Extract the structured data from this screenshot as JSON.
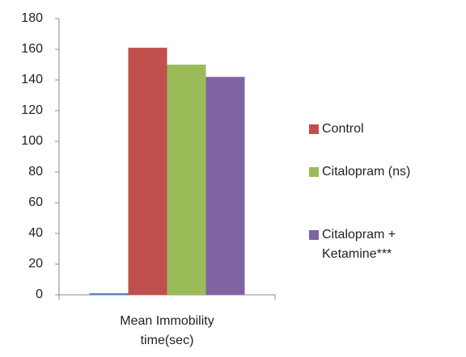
{
  "chart_data": {
    "type": "bar",
    "categories": [
      "Mean Immobility time(sec)"
    ],
    "series": [
      {
        "name": null,
        "color": "#4f81bd",
        "values": [
          1
        ]
      },
      {
        "name": "Control",
        "color": "#c0504d",
        "values": [
          161
        ]
      },
      {
        "name": "Citalopram (ns)",
        "color": "#9bbb59",
        "values": [
          150
        ]
      },
      {
        "name": "Citalopram + Ketamine***",
        "color": "#8064a2",
        "values": [
          142
        ]
      }
    ],
    "ylim": [
      0,
      180
    ],
    "yticks": [
      0,
      20,
      40,
      60,
      80,
      100,
      120,
      140,
      160,
      180
    ],
    "grid": false,
    "legend": "right"
  }
}
